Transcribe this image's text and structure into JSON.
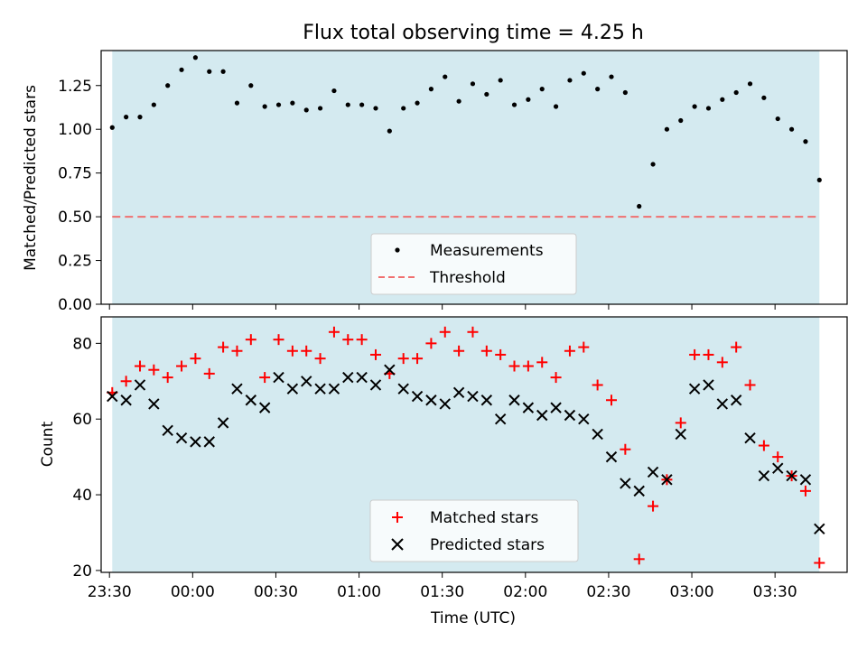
{
  "figure": {
    "title": "Flux total observing time = 4.25 h",
    "xlabel": "Time (UTC)"
  },
  "colors": {
    "shade": "#d4eaf0",
    "threshold": "#f07070",
    "matched": "#ff0000",
    "predicted": "#000000",
    "measurement": "#000000"
  },
  "chart_data": [
    {
      "type": "scatter",
      "panel": "top",
      "ylabel": "Matched/Predicted stars",
      "ylim": [
        0,
        1.45
      ],
      "yticks": [
        0.0,
        0.25,
        0.5,
        0.75,
        1.0,
        1.25
      ],
      "ytick_labels": [
        "0.00",
        "0.25",
        "0.50",
        "0.75",
        "1.00",
        "1.25"
      ],
      "shaded_span": [
        "23:31",
        "03:46"
      ],
      "legend": {
        "placement": "lower center",
        "entries": [
          {
            "label": "Measurements",
            "marker": "dot"
          },
          {
            "label": "Threshold",
            "marker": "dashed-line"
          }
        ]
      },
      "threshold": 0.5,
      "series": [
        {
          "name": "Measurements",
          "x": [
            "23:31",
            "23:36",
            "23:41",
            "23:46",
            "23:51",
            "23:56",
            "00:01",
            "00:06",
            "00:11",
            "00:16",
            "00:21",
            "00:26",
            "00:31",
            "00:36",
            "00:41",
            "00:46",
            "00:51",
            "00:56",
            "01:01",
            "01:06",
            "01:11",
            "01:16",
            "01:21",
            "01:26",
            "01:31",
            "01:36",
            "01:41",
            "01:46",
            "01:51",
            "01:56",
            "02:01",
            "02:06",
            "02:11",
            "02:16",
            "02:21",
            "02:26",
            "02:31",
            "02:36",
            "02:41",
            "02:46",
            "02:51",
            "02:56",
            "03:01",
            "03:06",
            "03:11",
            "03:16",
            "03:21",
            "03:26",
            "03:31",
            "03:36",
            "03:41",
            "03:46"
          ],
          "y": [
            1.01,
            1.07,
            1.07,
            1.14,
            1.25,
            1.34,
            1.41,
            1.33,
            1.33,
            1.15,
            1.25,
            1.13,
            1.14,
            1.15,
            1.11,
            1.12,
            1.22,
            1.14,
            1.14,
            1.12,
            0.99,
            1.12,
            1.15,
            1.23,
            1.3,
            1.16,
            1.26,
            1.2,
            1.28,
            1.14,
            1.17,
            1.23,
            1.13,
            1.28,
            1.32,
            1.23,
            1.3,
            1.21,
            0.56,
            0.8,
            1.0,
            1.05,
            1.13,
            1.12,
            1.17,
            1.21,
            1.26,
            1.18,
            1.06,
            1.0,
            0.93,
            0.71
          ]
        }
      ]
    },
    {
      "type": "scatter",
      "panel": "bottom",
      "ylabel": "Count",
      "ylim": [
        19.5,
        87
      ],
      "yticks": [
        20,
        40,
        60,
        80
      ],
      "ytick_labels": [
        "20",
        "40",
        "60",
        "80"
      ],
      "xlim": [
        "23:27",
        "03:56"
      ],
      "xticks": [
        "23:30",
        "00:00",
        "00:30",
        "01:00",
        "01:30",
        "02:00",
        "02:30",
        "03:00",
        "03:30"
      ],
      "xtick_labels": [
        "23:30",
        "00:00",
        "00:30",
        "01:00",
        "01:30",
        "02:00",
        "02:30",
        "03:00",
        "03:30"
      ],
      "shaded_span": [
        "23:31",
        "03:46"
      ],
      "legend": {
        "placement": "lower center",
        "entries": [
          {
            "label": "Matched stars",
            "marker": "plus"
          },
          {
            "label": "Predicted stars",
            "marker": "x"
          }
        ]
      },
      "series": [
        {
          "name": "Matched stars",
          "x": [
            "23:31",
            "23:36",
            "23:41",
            "23:46",
            "23:51",
            "23:56",
            "00:01",
            "00:06",
            "00:11",
            "00:16",
            "00:21",
            "00:26",
            "00:31",
            "00:36",
            "00:41",
            "00:46",
            "00:51",
            "00:56",
            "01:01",
            "01:06",
            "01:11",
            "01:16",
            "01:21",
            "01:26",
            "01:31",
            "01:36",
            "01:41",
            "01:46",
            "01:51",
            "01:56",
            "02:01",
            "02:06",
            "02:11",
            "02:16",
            "02:21",
            "02:26",
            "02:31",
            "02:36",
            "02:41",
            "02:46",
            "02:51",
            "02:56",
            "03:01",
            "03:06",
            "03:11",
            "03:16",
            "03:21",
            "03:26",
            "03:31",
            "03:36",
            "03:41",
            "03:46"
          ],
          "y": [
            67,
            70,
            74,
            73,
            71,
            74,
            76,
            72,
            79,
            78,
            81,
            71,
            81,
            78,
            78,
            76,
            83,
            81,
            81,
            77,
            72,
            76,
            76,
            80,
            83,
            78,
            83,
            78,
            77,
            74,
            74,
            75,
            71,
            78,
            79,
            69,
            65,
            52,
            23,
            37,
            44,
            59,
            77,
            77,
            75,
            79,
            69,
            53,
            50,
            45,
            41,
            22
          ]
        },
        {
          "name": "Predicted stars",
          "x": [
            "23:31",
            "23:36",
            "23:41",
            "23:46",
            "23:51",
            "23:56",
            "00:01",
            "00:06",
            "00:11",
            "00:16",
            "00:21",
            "00:26",
            "00:31",
            "00:36",
            "00:41",
            "00:46",
            "00:51",
            "00:56",
            "01:01",
            "01:06",
            "01:11",
            "01:16",
            "01:21",
            "01:26",
            "01:31",
            "01:36",
            "01:41",
            "01:46",
            "01:51",
            "01:56",
            "02:01",
            "02:06",
            "02:11",
            "02:16",
            "02:21",
            "02:26",
            "02:31",
            "02:36",
            "02:41",
            "02:46",
            "02:51",
            "02:56",
            "03:01",
            "03:06",
            "03:11",
            "03:16",
            "03:21",
            "03:26",
            "03:31",
            "03:36",
            "03:41",
            "03:46"
          ],
          "y": [
            66,
            65,
            69,
            64,
            57,
            55,
            54,
            54,
            59,
            68,
            65,
            63,
            71,
            68,
            70,
            68,
            68,
            71,
            71,
            69,
            73,
            68,
            66,
            65,
            64,
            67,
            66,
            65,
            60,
            65,
            63,
            61,
            63,
            61,
            60,
            56,
            50,
            43,
            41,
            46,
            44,
            56,
            68,
            69,
            64,
            65,
            55,
            45,
            47,
            45,
            44,
            31
          ]
        }
      ]
    }
  ]
}
